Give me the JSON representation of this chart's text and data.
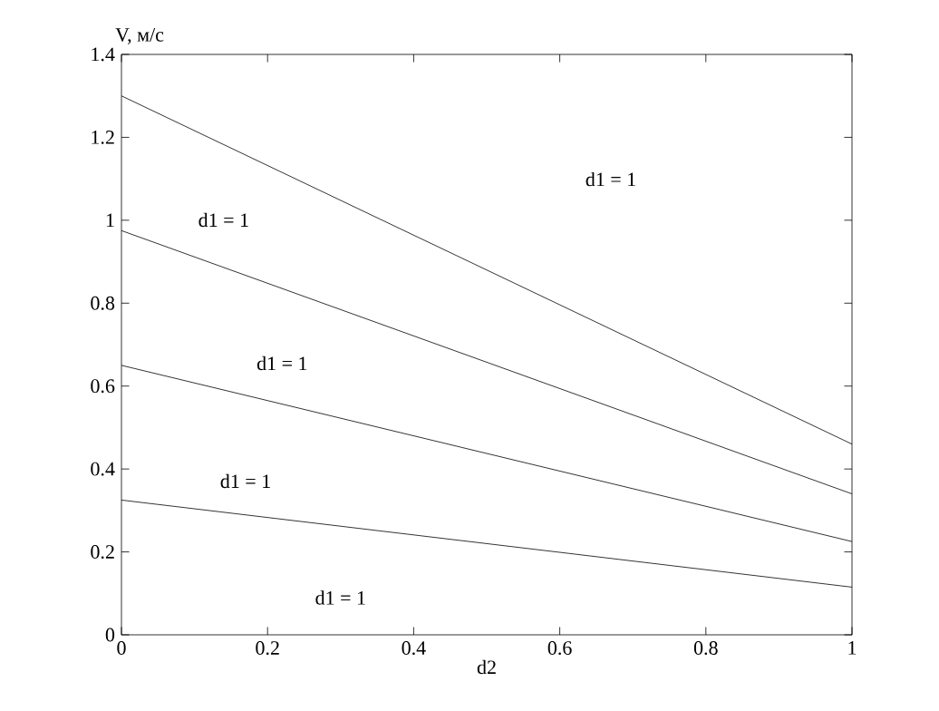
{
  "chart_data": {
    "type": "line",
    "xlabel": "d2",
    "ylabel": "V, м/с",
    "x": [
      0,
      1
    ],
    "series": [
      {
        "color": "#000000",
        "values": [
          1.3,
          0.46
        ]
      },
      {
        "color": "#000000",
        "values": [
          0.975,
          0.34
        ]
      },
      {
        "color": "#000000",
        "values": [
          0.65,
          0.225
        ]
      },
      {
        "color": "#000000",
        "values": [
          0.325,
          0.115
        ]
      }
    ],
    "annotations": [
      "d1 = 1",
      "d1 = 1",
      "d1 = 1",
      "d1 = 1",
      "d1 = 1"
    ],
    "xlim": [
      0,
      1
    ],
    "ylim": [
      0,
      1.4
    ],
    "xticks": [
      0,
      0.2,
      0.4,
      0.6,
      0.8,
      1
    ],
    "yticks": [
      0,
      0.2,
      0.4,
      0.6,
      0.8,
      1,
      1.2,
      1.4
    ],
    "line_style": "solid"
  }
}
